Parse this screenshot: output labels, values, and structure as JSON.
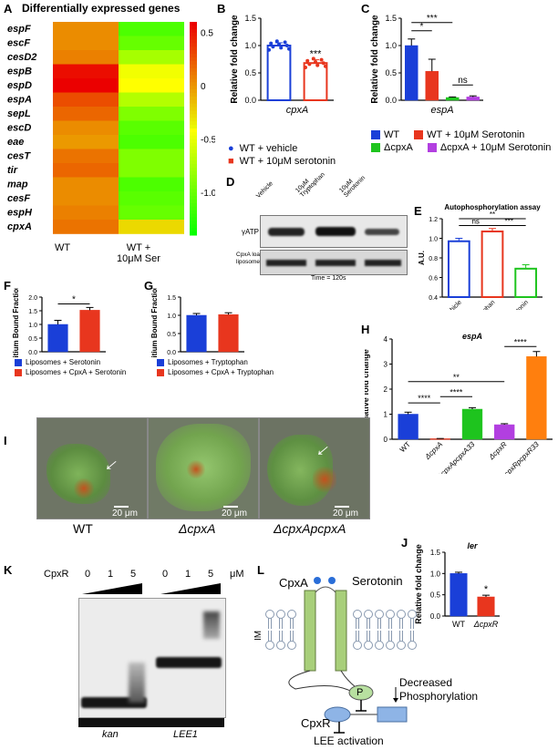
{
  "panels": {
    "A": "A",
    "B": "B",
    "C": "C",
    "D": "D",
    "E": "E",
    "F": "F",
    "G": "G",
    "H": "H",
    "I": "I",
    "J": "J",
    "K": "K",
    "L": "L"
  },
  "heatmap": {
    "title": "Differentially expressed genes",
    "genes": [
      "espF",
      "escF",
      "cesD2",
      "espB",
      "espD",
      "espA",
      "sepL",
      "escD",
      "eae",
      "cesT",
      "tir",
      "map",
      "cesF",
      "espH",
      "cpxA"
    ],
    "columns": [
      "WT",
      "WT +\n10μM Ser"
    ],
    "col1": "WT",
    "col2a": "WT +",
    "col2b": "10μM Ser",
    "values": [
      [
        0.05,
        -1.1
      ],
      [
        0.05,
        -1.0
      ],
      [
        0.1,
        -0.75
      ],
      [
        0.55,
        -0.45
      ],
      [
        0.6,
        -0.4
      ],
      [
        0.3,
        -0.7
      ],
      [
        0.2,
        -0.9
      ],
      [
        0.05,
        -1.05
      ],
      [
        0.0,
        -1.1
      ],
      [
        0.15,
        -0.9
      ],
      [
        0.2,
        -0.9
      ],
      [
        0.05,
        -1.1
      ],
      [
        0.05,
        -1.05
      ],
      [
        0.1,
        -1.0
      ],
      [
        0.15,
        -0.25
      ]
    ],
    "colorbar_ticks": [
      "0.5",
      "0",
      "-0.5",
      "-1.0"
    ],
    "range": [
      -1.4,
      0.6
    ],
    "colors": {
      "high": "#e60000",
      "mid": "#ffff00",
      "low": "#00ff00"
    }
  },
  "chart_data": [
    {
      "panel": "B",
      "type": "bar",
      "ylabel": "Relative fold change",
      "xlabel": "cpxA",
      "categories": [
        "WT + vehicle",
        "WT + 10μM serotonin"
      ],
      "values": [
        1.0,
        0.68
      ],
      "errors": [
        0.05,
        0.06
      ],
      "ylim": [
        0,
        1.5
      ],
      "yticks": [
        "0.0",
        "0.5",
        "1.0",
        "1.5"
      ],
      "significance": "***",
      "colors": [
        "#1a3fd8",
        "#e8361e"
      ]
    },
    {
      "panel": "C",
      "type": "bar",
      "ylabel": "Relative fold change",
      "xlabel": "espA",
      "categories": [
        "WT",
        "WT + 10μM Serotonin",
        "ΔcpxA",
        "ΔcpxA + 10μM Serotonin"
      ],
      "values": [
        1.0,
        0.53,
        0.05,
        0.06
      ],
      "errors": [
        0.12,
        0.22,
        0.01,
        0.02
      ],
      "ylim": [
        0,
        1.5
      ],
      "yticks": [
        "0.0",
        "0.5",
        "1.0",
        "1.5"
      ],
      "brackets": [
        "*",
        "***",
        "ns"
      ],
      "colors": [
        "#1a3fd8",
        "#e8361e",
        "#1ec41e",
        "#b23fe0"
      ]
    },
    {
      "panel": "E",
      "type": "bar",
      "title": "Autophosphorylation assay",
      "ylabel": "A.U.",
      "categories": [
        "Vehicle",
        "Tryptophan",
        "Serotonin"
      ],
      "values": [
        0.97,
        1.07,
        0.69
      ],
      "errors": [
        0.03,
        0.03,
        0.04
      ],
      "ylim": [
        0.4,
        1.2
      ],
      "yticks": [
        "0.4",
        "0.6",
        "0.8",
        "1.0",
        "1.2"
      ],
      "brackets": [
        "ns",
        "***",
        "**"
      ],
      "colors": [
        "#1a3fd8",
        "#e8361e",
        "#1ec41e"
      ]
    },
    {
      "panel": "F",
      "type": "bar",
      "ylabel": "Tritium Bound Fraction",
      "categories": [
        "Liposomes + Serotonin",
        "Liposomes + CpxA + Serotonin"
      ],
      "values": [
        1.0,
        1.52
      ],
      "errors": [
        0.15,
        0.1
      ],
      "ylim": [
        0,
        2.0
      ],
      "yticks": [
        "0.0",
        "0.5",
        "1.0",
        "1.5",
        "2.0"
      ],
      "significance": "*",
      "colors": [
        "#1a3fd8",
        "#e8361e"
      ]
    },
    {
      "panel": "G",
      "type": "bar",
      "ylabel": "Tritium Bound Fraction",
      "categories": [
        "Liposomes + Tryptophan",
        "Liposomes + CpxA + Tryptophan"
      ],
      "values": [
        1.0,
        1.02
      ],
      "errors": [
        0.05,
        0.05
      ],
      "ylim": [
        0,
        1.5
      ],
      "yticks": [
        "0.0",
        "0.5",
        "1.0",
        "1.5"
      ],
      "colors": [
        "#1a3fd8",
        "#e8361e"
      ]
    },
    {
      "panel": "H",
      "type": "bar",
      "title": "espA",
      "ylabel": "Relative fold change",
      "categories": [
        "WT",
        "ΔcpxA",
        "ΔcpxApcpxA33",
        "ΔcpxR",
        "ΔcpxRpcpxR33"
      ],
      "values": [
        1.0,
        0.02,
        1.2,
        0.58,
        3.3
      ],
      "errors": [
        0.08,
        0.01,
        0.06,
        0.04,
        0.2
      ],
      "ylim": [
        0,
        4
      ],
      "yticks": [
        "0",
        "1",
        "2",
        "3",
        "4"
      ],
      "brackets": [
        "****",
        "****",
        "**",
        "****"
      ],
      "colors": [
        "#1a3fd8",
        "#e8361e",
        "#1ec41e",
        "#b23fe0",
        "#ff7f0e"
      ]
    },
    {
      "panel": "J",
      "type": "bar",
      "title": "ler",
      "ylabel": "Relative fold change",
      "categories": [
        "WT",
        "ΔcpxR"
      ],
      "values": [
        1.0,
        0.45
      ],
      "errors": [
        0.03,
        0.04
      ],
      "ylim": [
        0,
        1.5
      ],
      "yticks": [
        "0.0",
        "0.5",
        "1.0",
        "1.5"
      ],
      "significance": "*",
      "colors": [
        "#1a3fd8",
        "#e8361e"
      ]
    }
  ],
  "legendB": [
    "WT + vehicle",
    "WT + 10μM serotonin"
  ],
  "legendC": [
    "WT",
    "WT + 10μM Serotonin",
    "ΔcpxA",
    "ΔcpxA + 10μM Serotonin"
  ],
  "legendF": [
    "Liposomes + Serotonin",
    "Liposomes + CpxA + Serotonin"
  ],
  "legendG": [
    "Liposomes + Tryptophan",
    "Liposomes + CpxA + Tryptophan"
  ],
  "blotD": {
    "lanes": [
      "Vehicle",
      "10μM\nTryptophan",
      "10μM\nSerotonin"
    ],
    "row1": "γATP",
    "row2": "CpxA loaded\nliposomes",
    "time": "Time = 120s"
  },
  "microscopy": {
    "labels": [
      "WT",
      "ΔcpxA",
      "ΔcpxApcpxA"
    ],
    "scale": "20 μm"
  },
  "gelK": {
    "protein": "CpxR",
    "concs": [
      "0",
      "1",
      "5",
      "0",
      "1",
      "5"
    ],
    "unit": "μM",
    "probes": [
      "kan",
      "LEE1"
    ]
  },
  "modelL": {
    "cpxA": "CpxA",
    "serotonin": "Serotonin",
    "im": "IM",
    "p": "P",
    "decreased": "Decreased",
    "phosph": "Phosphorylation",
    "cpxR": "CpxR",
    "lee": "LEE activation"
  }
}
